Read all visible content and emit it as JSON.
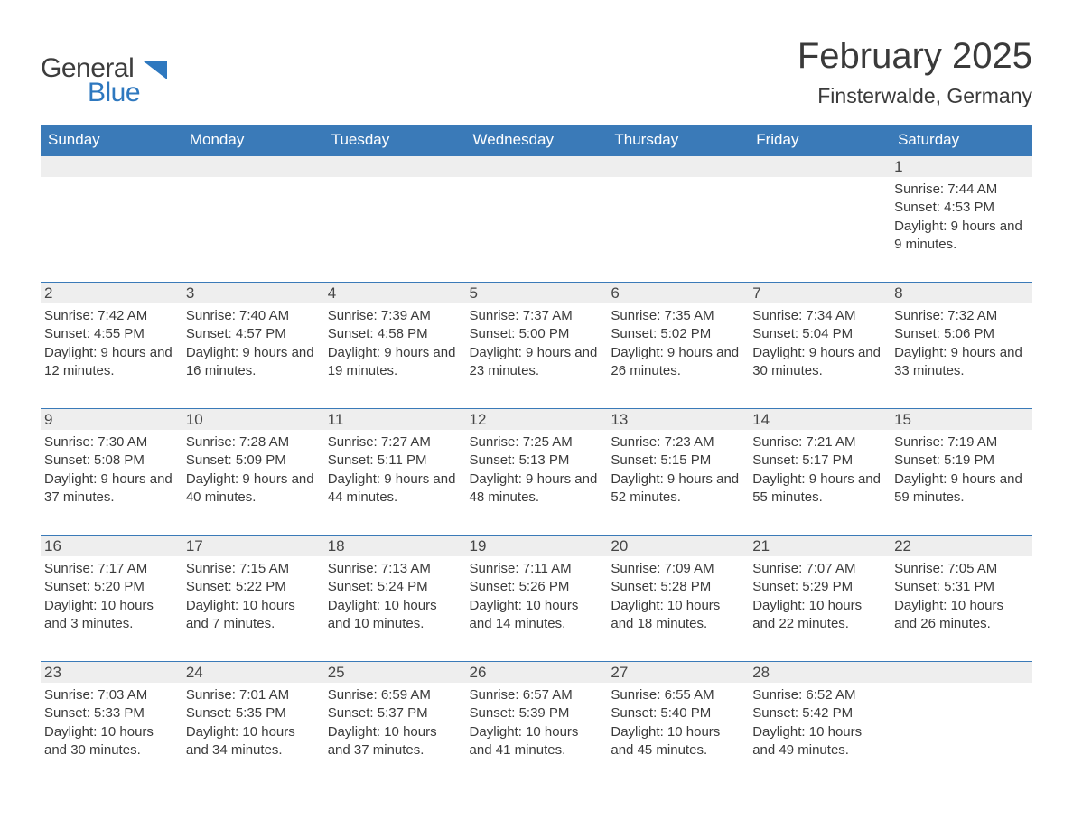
{
  "brand": {
    "general": "General",
    "blue": "Blue",
    "general_color": "#3d3d3d",
    "blue_color": "#2e78bf",
    "font_size_pt": 22,
    "mark_color": "#2e78bf"
  },
  "title": {
    "month_year": "February 2025",
    "location": "Finsterwalde, Germany",
    "month_fontsize": 40,
    "location_fontsize": 23,
    "color": "#3a3a3a"
  },
  "calendar": {
    "type": "table",
    "columns": [
      "Sunday",
      "Monday",
      "Tuesday",
      "Wednesday",
      "Thursday",
      "Friday",
      "Saturday"
    ],
    "header_bg": "#3a7ab8",
    "header_fg": "#ffffff",
    "header_fontsize": 17,
    "daynum_bg": "#eeeeee",
    "daynum_border_top": "#3a7ab8",
    "daynum_fontsize": 17,
    "cell_text_color": "#3b3b3b",
    "cell_fontsize": 15,
    "background_color": "#ffffff",
    "weeks": [
      [
        {
          "day": null
        },
        {
          "day": null
        },
        {
          "day": null
        },
        {
          "day": null
        },
        {
          "day": null
        },
        {
          "day": null
        },
        {
          "day": "1",
          "sunrise": "Sunrise: 7:44 AM",
          "sunset": "Sunset: 4:53 PM",
          "daylight": "Daylight: 9 hours and 9 minutes."
        }
      ],
      [
        {
          "day": "2",
          "sunrise": "Sunrise: 7:42 AM",
          "sunset": "Sunset: 4:55 PM",
          "daylight": "Daylight: 9 hours and 12 minutes."
        },
        {
          "day": "3",
          "sunrise": "Sunrise: 7:40 AM",
          "sunset": "Sunset: 4:57 PM",
          "daylight": "Daylight: 9 hours and 16 minutes."
        },
        {
          "day": "4",
          "sunrise": "Sunrise: 7:39 AM",
          "sunset": "Sunset: 4:58 PM",
          "daylight": "Daylight: 9 hours and 19 minutes."
        },
        {
          "day": "5",
          "sunrise": "Sunrise: 7:37 AM",
          "sunset": "Sunset: 5:00 PM",
          "daylight": "Daylight: 9 hours and 23 minutes."
        },
        {
          "day": "6",
          "sunrise": "Sunrise: 7:35 AM",
          "sunset": "Sunset: 5:02 PM",
          "daylight": "Daylight: 9 hours and 26 minutes."
        },
        {
          "day": "7",
          "sunrise": "Sunrise: 7:34 AM",
          "sunset": "Sunset: 5:04 PM",
          "daylight": "Daylight: 9 hours and 30 minutes."
        },
        {
          "day": "8",
          "sunrise": "Sunrise: 7:32 AM",
          "sunset": "Sunset: 5:06 PM",
          "daylight": "Daylight: 9 hours and 33 minutes."
        }
      ],
      [
        {
          "day": "9",
          "sunrise": "Sunrise: 7:30 AM",
          "sunset": "Sunset: 5:08 PM",
          "daylight": "Daylight: 9 hours and 37 minutes."
        },
        {
          "day": "10",
          "sunrise": "Sunrise: 7:28 AM",
          "sunset": "Sunset: 5:09 PM",
          "daylight": "Daylight: 9 hours and 40 minutes."
        },
        {
          "day": "11",
          "sunrise": "Sunrise: 7:27 AM",
          "sunset": "Sunset: 5:11 PM",
          "daylight": "Daylight: 9 hours and 44 minutes."
        },
        {
          "day": "12",
          "sunrise": "Sunrise: 7:25 AM",
          "sunset": "Sunset: 5:13 PM",
          "daylight": "Daylight: 9 hours and 48 minutes."
        },
        {
          "day": "13",
          "sunrise": "Sunrise: 7:23 AM",
          "sunset": "Sunset: 5:15 PM",
          "daylight": "Daylight: 9 hours and 52 minutes."
        },
        {
          "day": "14",
          "sunrise": "Sunrise: 7:21 AM",
          "sunset": "Sunset: 5:17 PM",
          "daylight": "Daylight: 9 hours and 55 minutes."
        },
        {
          "day": "15",
          "sunrise": "Sunrise: 7:19 AM",
          "sunset": "Sunset: 5:19 PM",
          "daylight": "Daylight: 9 hours and 59 minutes."
        }
      ],
      [
        {
          "day": "16",
          "sunrise": "Sunrise: 7:17 AM",
          "sunset": "Sunset: 5:20 PM",
          "daylight": "Daylight: 10 hours and 3 minutes."
        },
        {
          "day": "17",
          "sunrise": "Sunrise: 7:15 AM",
          "sunset": "Sunset: 5:22 PM",
          "daylight": "Daylight: 10 hours and 7 minutes."
        },
        {
          "day": "18",
          "sunrise": "Sunrise: 7:13 AM",
          "sunset": "Sunset: 5:24 PM",
          "daylight": "Daylight: 10 hours and 10 minutes."
        },
        {
          "day": "19",
          "sunrise": "Sunrise: 7:11 AM",
          "sunset": "Sunset: 5:26 PM",
          "daylight": "Daylight: 10 hours and 14 minutes."
        },
        {
          "day": "20",
          "sunrise": "Sunrise: 7:09 AM",
          "sunset": "Sunset: 5:28 PM",
          "daylight": "Daylight: 10 hours and 18 minutes."
        },
        {
          "day": "21",
          "sunrise": "Sunrise: 7:07 AM",
          "sunset": "Sunset: 5:29 PM",
          "daylight": "Daylight: 10 hours and 22 minutes."
        },
        {
          "day": "22",
          "sunrise": "Sunrise: 7:05 AM",
          "sunset": "Sunset: 5:31 PM",
          "daylight": "Daylight: 10 hours and 26 minutes."
        }
      ],
      [
        {
          "day": "23",
          "sunrise": "Sunrise: 7:03 AM",
          "sunset": "Sunset: 5:33 PM",
          "daylight": "Daylight: 10 hours and 30 minutes."
        },
        {
          "day": "24",
          "sunrise": "Sunrise: 7:01 AM",
          "sunset": "Sunset: 5:35 PM",
          "daylight": "Daylight: 10 hours and 34 minutes."
        },
        {
          "day": "25",
          "sunrise": "Sunrise: 6:59 AM",
          "sunset": "Sunset: 5:37 PM",
          "daylight": "Daylight: 10 hours and 37 minutes."
        },
        {
          "day": "26",
          "sunrise": "Sunrise: 6:57 AM",
          "sunset": "Sunset: 5:39 PM",
          "daylight": "Daylight: 10 hours and 41 minutes."
        },
        {
          "day": "27",
          "sunrise": "Sunrise: 6:55 AM",
          "sunset": "Sunset: 5:40 PM",
          "daylight": "Daylight: 10 hours and 45 minutes."
        },
        {
          "day": "28",
          "sunrise": "Sunrise: 6:52 AM",
          "sunset": "Sunset: 5:42 PM",
          "daylight": "Daylight: 10 hours and 49 minutes."
        },
        {
          "day": null
        }
      ]
    ]
  }
}
